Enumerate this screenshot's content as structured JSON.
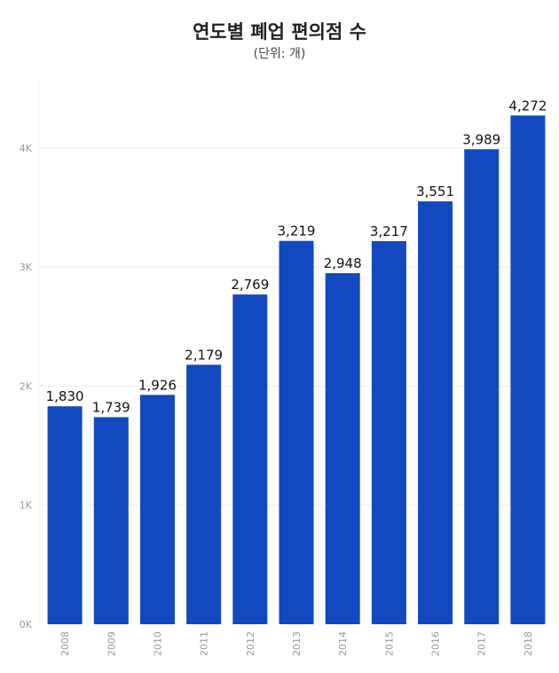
{
  "chart_data": {
    "type": "bar",
    "title": "연도별 폐업 편의점 수",
    "subtitle": "(단위: 개)",
    "categories": [
      "2008",
      "2009",
      "2010",
      "2011",
      "2012",
      "2013",
      "2014",
      "2015",
      "2016",
      "2017",
      "2018"
    ],
    "values": [
      1830,
      1739,
      1926,
      2179,
      2769,
      3219,
      2948,
      3217,
      3551,
      3989,
      4272
    ],
    "value_labels": [
      "1,830",
      "1,739",
      "1,926",
      "2,179",
      "2,769",
      "3,219",
      "2,948",
      "3,217",
      "3,551",
      "3,989",
      "4,272"
    ],
    "yticks": [
      0,
      1000,
      2000,
      3000,
      4000
    ],
    "ytick_labels": [
      "0K",
      "1K",
      "2K",
      "3K",
      "4K"
    ],
    "ylim": [
      0,
      4600
    ],
    "grid": true,
    "bar_color": "#1249c0"
  }
}
